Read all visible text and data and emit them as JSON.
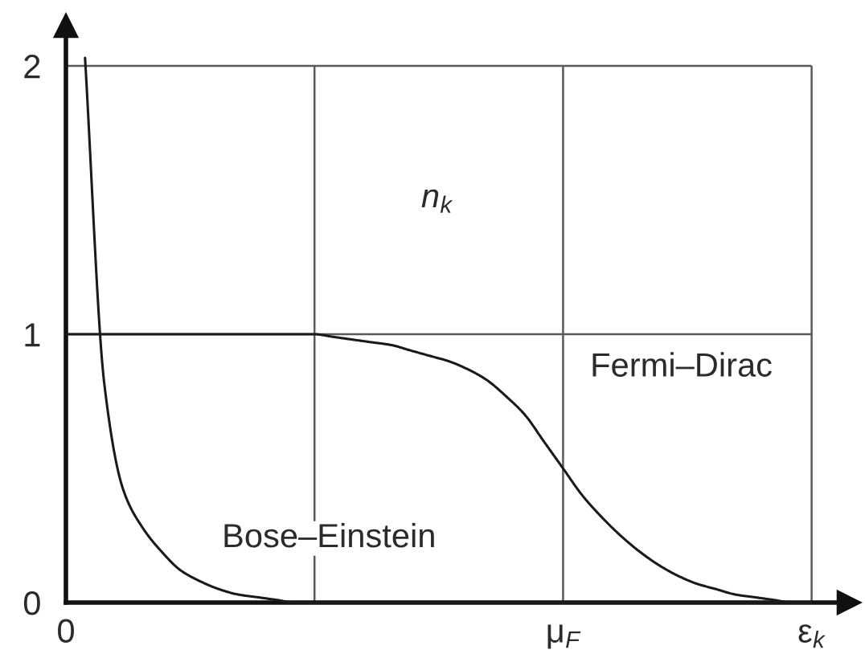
{
  "chart_data": {
    "type": "line",
    "ylabel": "n$_{k}$",
    "categories": [
      "0",
      null,
      null,
      null,
      null,
      null,
      null,
      null,
      null,
      null,
      null,
      null,
      null,
      null,
      null,
      null,
      null,
      null,
      null,
      null,
      null,
      null,
      null,
      null,
      null,
      null,
      "μ$_{F}$",
      null,
      null,
      null,
      null,
      null,
      null,
      null,
      null,
      null,
      null,
      null,
      null,
      "ε$_{k}$"
    ],
    "ylim": [
      0,
      2.15
    ],
    "yticks": [
      0,
      1,
      2
    ],
    "grid": true,
    "line_style": "solid",
    "series": [
      {
        "name": "Bose–Einstein",
        "color": "#1a1a1a",
        "values": [
          null,
          2.03,
          0.82,
          0.42,
          0.28,
          0.19,
          0.12,
          0.08,
          0.05,
          0.03,
          0.02,
          0.01,
          0,
          0,
          0,
          0,
          0,
          0,
          0,
          0,
          0,
          0,
          0,
          0,
          0,
          0,
          0,
          0,
          0,
          0,
          0,
          0,
          0,
          0,
          0,
          0,
          0,
          0,
          0,
          0
        ]
      },
      {
        "name": "Fermi–Dirac",
        "color": "#1a1a1a",
        "values": [
          1.0,
          1.0,
          1.0,
          1.0,
          1.0,
          1.0,
          1.0,
          1.0,
          1.0,
          1.0,
          1.0,
          1.0,
          1.0,
          1.0,
          0.99,
          0.98,
          0.97,
          0.96,
          0.94,
          0.92,
          0.9,
          0.87,
          0.83,
          0.77,
          0.7,
          0.6,
          0.5,
          0.4,
          0.32,
          0.25,
          0.19,
          0.14,
          0.1,
          0.07,
          0.05,
          0.03,
          0.02,
          0.01,
          0,
          0
        ]
      }
    ]
  }
}
